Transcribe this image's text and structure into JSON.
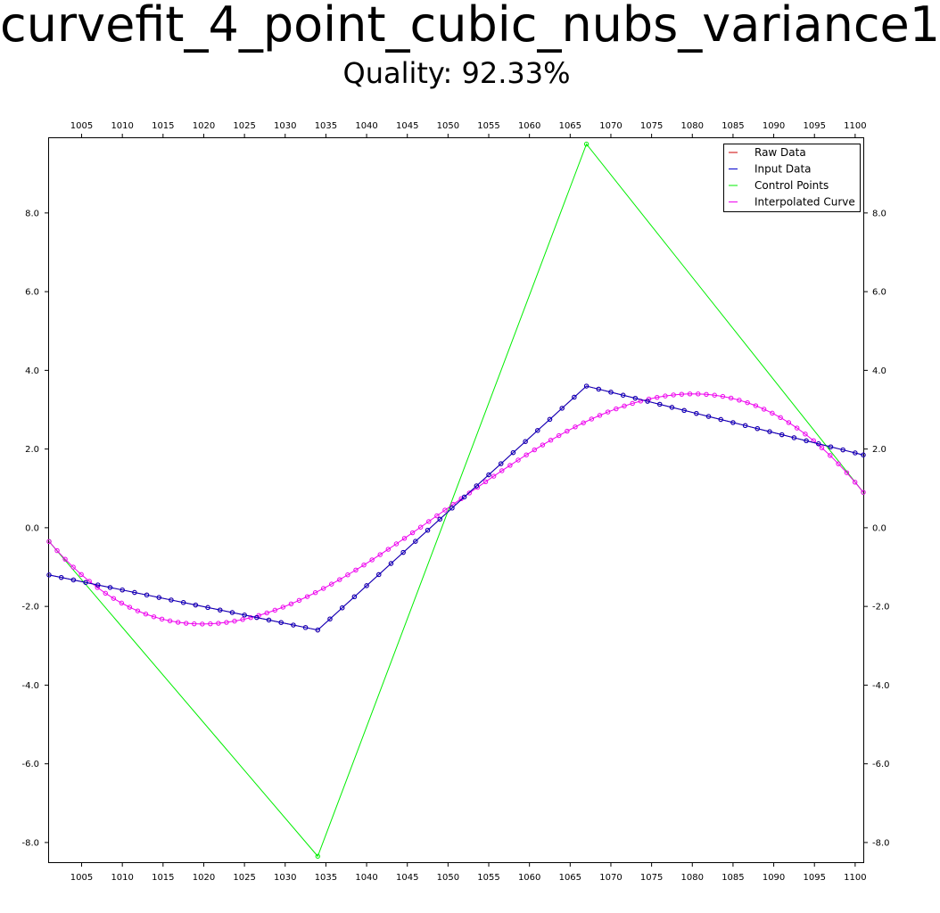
{
  "chart_data": {
    "type": "line",
    "title": "curvefit_4_point_cubic_nubs_variance1",
    "subtitle": "Quality: 92.33%",
    "xlim": [
      1001,
      1101
    ],
    "ylim": [
      -8.5,
      9.9
    ],
    "x_ticks": [
      1005,
      1010,
      1015,
      1020,
      1025,
      1030,
      1035,
      1040,
      1045,
      1050,
      1055,
      1060,
      1065,
      1070,
      1075,
      1080,
      1085,
      1090,
      1095,
      1100
    ],
    "y_ticks": [
      -8.0,
      -6.0,
      -4.0,
      -2.0,
      0.0,
      2.0,
      4.0,
      6.0,
      8.0
    ],
    "y_tick_labels": [
      "-8.0",
      "-6.0",
      "-4.0",
      "-2.0",
      "0.0",
      "2.0",
      "4.0",
      "6.0",
      "8.0"
    ],
    "legend": {
      "position": "top-right"
    },
    "series": [
      {
        "name": "Raw Data",
        "color": "#cc0000",
        "marker": "circle",
        "polyline": [
          [
            1001,
            -1.2
          ],
          [
            1034,
            -2.6
          ],
          [
            1067,
            3.6
          ],
          [
            1101,
            1.85
          ]
        ]
      },
      {
        "name": "Input Data",
        "color": "#0000cc",
        "marker": "circle",
        "polyline": [
          [
            1001,
            -1.2
          ],
          [
            1034,
            -2.6
          ],
          [
            1067,
            3.6
          ],
          [
            1101,
            1.85
          ]
        ]
      },
      {
        "name": "Control Points",
        "color": "#00ee00",
        "marker": "circle",
        "x": [
          1001,
          1034,
          1067,
          1101
        ],
        "y": [
          -0.35,
          -8.35,
          9.75,
          0.9
        ]
      },
      {
        "name": "Interpolated Curve",
        "color": "#ee00ee",
        "marker": "circle",
        "bezier": [
          [
            1001,
            -0.35
          ],
          [
            1034,
            -8.35
          ],
          [
            1067,
            9.75
          ],
          [
            1101,
            0.9
          ]
        ]
      }
    ]
  }
}
